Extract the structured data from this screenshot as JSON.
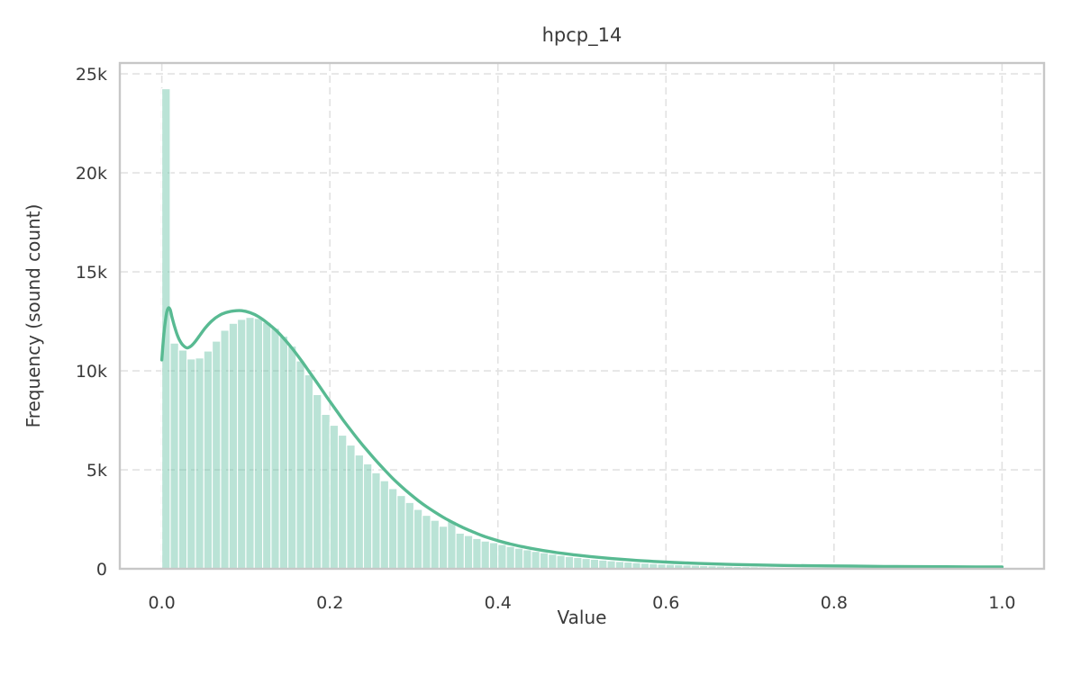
{
  "chart_data": {
    "type": "bar",
    "subtype": "histogram_with_kde",
    "title": "hpcp_14",
    "xlabel": "Value",
    "ylabel": "Frequency (sound count)",
    "xlim": [
      -0.05,
      1.05
    ],
    "ylim": [
      0,
      25550
    ],
    "grid": "dashed-both-axes",
    "legend": "none",
    "x_ticks": {
      "values": [
        0.0,
        0.2,
        0.4,
        0.6,
        0.8,
        1.0
      ],
      "labels": [
        "0.0",
        "0.2",
        "0.4",
        "0.6",
        "0.8",
        "1.0"
      ]
    },
    "y_ticks": {
      "values": [
        0,
        5000,
        10000,
        15000,
        20000,
        25000
      ],
      "labels": [
        "0",
        "5k",
        "10k",
        "15k",
        "20k",
        "25k"
      ]
    },
    "bin_start": 0.0,
    "bin_width": 0.01,
    "bin_counts": [
      24250,
      11400,
      11050,
      10600,
      10650,
      11000,
      11500,
      12050,
      12400,
      12600,
      12700,
      12650,
      12450,
      12150,
      11750,
      11250,
      10500,
      9800,
      8800,
      7800,
      7250,
      6750,
      6250,
      5750,
      5300,
      4850,
      4450,
      4050,
      3700,
      3350,
      3000,
      2700,
      2450,
      2150,
      2400,
      1800,
      1680,
      1530,
      1400,
      1320,
      1230,
      1130,
      1040,
      960,
      880,
      810,
      740,
      680,
      620,
      570,
      520,
      480,
      440,
      405,
      370,
      340,
      310,
      285,
      260,
      240,
      220,
      205,
      190,
      175,
      160,
      148,
      136,
      125,
      115,
      106,
      98,
      90,
      83,
      76,
      70,
      64,
      59,
      54,
      50,
      46,
      42,
      39,
      36,
      33,
      30,
      28,
      26,
      24,
      22,
      20,
      19,
      17,
      16,
      15,
      14,
      13,
      12,
      11,
      10,
      45
    ],
    "kde_points": [
      [
        0.0,
        10550
      ],
      [
        0.002,
        11650
      ],
      [
        0.004,
        12450
      ],
      [
        0.006,
        12980
      ],
      [
        0.008,
        13180
      ],
      [
        0.01,
        13080
      ],
      [
        0.012,
        12730
      ],
      [
        0.015,
        12260
      ],
      [
        0.018,
        11860
      ],
      [
        0.021,
        11560
      ],
      [
        0.025,
        11300
      ],
      [
        0.03,
        11160
      ],
      [
        0.035,
        11260
      ],
      [
        0.04,
        11490
      ],
      [
        0.046,
        11840
      ],
      [
        0.052,
        12180
      ],
      [
        0.06,
        12540
      ],
      [
        0.068,
        12790
      ],
      [
        0.076,
        12940
      ],
      [
        0.085,
        13020
      ],
      [
        0.095,
        13040
      ],
      [
        0.105,
        12940
      ],
      [
        0.115,
        12740
      ],
      [
        0.125,
        12440
      ],
      [
        0.135,
        12080
      ],
      [
        0.145,
        11640
      ],
      [
        0.155,
        11140
      ],
      [
        0.165,
        10580
      ],
      [
        0.175,
        9980
      ],
      [
        0.185,
        9380
      ],
      [
        0.195,
        8760
      ],
      [
        0.205,
        8160
      ],
      [
        0.215,
        7560
      ],
      [
        0.225,
        7000
      ],
      [
        0.235,
        6460
      ],
      [
        0.245,
        5950
      ],
      [
        0.255,
        5460
      ],
      [
        0.265,
        5000
      ],
      [
        0.275,
        4560
      ],
      [
        0.285,
        4160
      ],
      [
        0.295,
        3790
      ],
      [
        0.305,
        3450
      ],
      [
        0.315,
        3140
      ],
      [
        0.325,
        2860
      ],
      [
        0.335,
        2600
      ],
      [
        0.345,
        2370
      ],
      [
        0.355,
        2150
      ],
      [
        0.365,
        1960
      ],
      [
        0.375,
        1780
      ],
      [
        0.385,
        1620
      ],
      [
        0.4,
        1420
      ],
      [
        0.415,
        1250
      ],
      [
        0.43,
        1110
      ],
      [
        0.45,
        950
      ],
      [
        0.47,
        820
      ],
      [
        0.49,
        710
      ],
      [
        0.51,
        620
      ],
      [
        0.535,
        520
      ],
      [
        0.56,
        440
      ],
      [
        0.585,
        375
      ],
      [
        0.61,
        320
      ],
      [
        0.64,
        270
      ],
      [
        0.67,
        230
      ],
      [
        0.7,
        200
      ],
      [
        0.74,
        170
      ],
      [
        0.78,
        150
      ],
      [
        0.82,
        135
      ],
      [
        0.86,
        120
      ],
      [
        0.9,
        110
      ],
      [
        0.95,
        100
      ],
      [
        1.0,
        90
      ]
    ],
    "colors": {
      "bar_fill_base": "#66c2a5",
      "bar_fill_opacity": 0.45,
      "bar_edge": "#ffffff",
      "kde_line": "#58ba92",
      "gridline": "#e2e2e2",
      "spine": "#c7c7c7",
      "text": "#3a3a3a",
      "background": "#ffffff"
    }
  }
}
